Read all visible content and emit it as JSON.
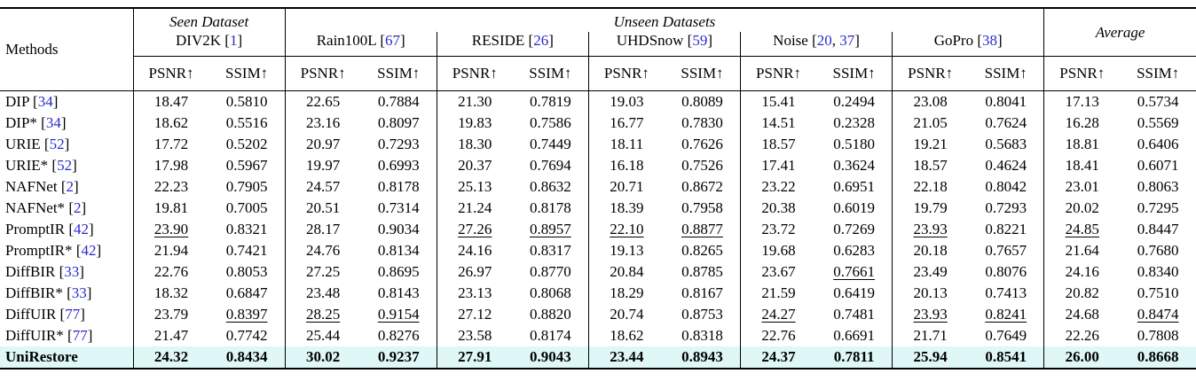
{
  "colors": {
    "cite_link": "#2a2ad0",
    "highlight_row_bg": "#dff7f7",
    "rule": "#000000"
  },
  "header": {
    "methods_label": "Methods",
    "group_labels": {
      "seen": "Seen Dataset",
      "unseen": "Unseen Datasets",
      "average": "Average"
    },
    "datasets": [
      {
        "name": "DIV2K",
        "cites": [
          "1"
        ]
      },
      {
        "name": "Rain100L",
        "cites": [
          "67"
        ]
      },
      {
        "name": "RESIDE",
        "cites": [
          "26"
        ]
      },
      {
        "name": "UHDSnow",
        "cites": [
          "59"
        ]
      },
      {
        "name": "Noise",
        "cites": [
          "20",
          "37"
        ]
      },
      {
        "name": "GoPro",
        "cites": [
          "38"
        ]
      }
    ],
    "metrics": [
      "PSNR↑",
      "SSIM↑"
    ]
  },
  "rows": [
    {
      "method": "DIP",
      "cites": [
        "34"
      ],
      "bold": false,
      "highlight": false,
      "underline": [],
      "values": [
        "18.47",
        "0.5810",
        "22.65",
        "0.7884",
        "21.30",
        "0.7819",
        "19.03",
        "0.8089",
        "15.41",
        "0.2494",
        "23.08",
        "0.8041",
        "17.13",
        "0.5734"
      ]
    },
    {
      "method": "DIP*",
      "cites": [
        "34"
      ],
      "bold": false,
      "highlight": false,
      "underline": [],
      "values": [
        "18.62",
        "0.5516",
        "23.16",
        "0.8097",
        "19.83",
        "0.7586",
        "16.77",
        "0.7830",
        "14.51",
        "0.2328",
        "21.05",
        "0.7624",
        "16.28",
        "0.5569"
      ]
    },
    {
      "method": "URIE",
      "cites": [
        "52"
      ],
      "bold": false,
      "highlight": false,
      "underline": [],
      "values": [
        "17.72",
        "0.5202",
        "20.97",
        "0.7293",
        "18.30",
        "0.7449",
        "18.11",
        "0.7626",
        "18.57",
        "0.5180",
        "19.21",
        "0.5683",
        "18.81",
        "0.6406"
      ]
    },
    {
      "method": "URIE*",
      "cites": [
        "52"
      ],
      "bold": false,
      "highlight": false,
      "underline": [],
      "values": [
        "17.98",
        "0.5967",
        "19.97",
        "0.6993",
        "20.37",
        "0.7694",
        "16.18",
        "0.7526",
        "17.41",
        "0.3624",
        "18.57",
        "0.4624",
        "18.41",
        "0.6071"
      ]
    },
    {
      "method": "NAFNet",
      "cites": [
        "2"
      ],
      "bold": false,
      "highlight": false,
      "underline": [],
      "values": [
        "22.23",
        "0.7905",
        "24.57",
        "0.8178",
        "25.13",
        "0.8632",
        "20.71",
        "0.8672",
        "23.22",
        "0.6951",
        "22.18",
        "0.8042",
        "23.01",
        "0.8063"
      ]
    },
    {
      "method": "NAFNet*",
      "cites": [
        "2"
      ],
      "bold": false,
      "highlight": false,
      "underline": [],
      "values": [
        "19.81",
        "0.7005",
        "20.51",
        "0.7314",
        "21.24",
        "0.8178",
        "18.39",
        "0.7958",
        "20.38",
        "0.6019",
        "19.79",
        "0.7293",
        "20.02",
        "0.7295"
      ]
    },
    {
      "method": "PromptIR",
      "cites": [
        "42"
      ],
      "bold": false,
      "highlight": false,
      "underline": [
        0,
        4,
        5,
        6,
        7,
        10,
        12
      ],
      "values": [
        "23.90",
        "0.8321",
        "28.17",
        "0.9034",
        "27.26",
        "0.8957",
        "22.10",
        "0.8877",
        "23.72",
        "0.7269",
        "23.93",
        "0.8221",
        "24.85",
        "0.8447"
      ]
    },
    {
      "method": "PromptIR*",
      "cites": [
        "42"
      ],
      "bold": false,
      "highlight": false,
      "underline": [],
      "values": [
        "21.94",
        "0.7421",
        "24.76",
        "0.8134",
        "24.16",
        "0.8317",
        "19.13",
        "0.8265",
        "19.68",
        "0.6283",
        "20.18",
        "0.7657",
        "21.64",
        "0.7680"
      ]
    },
    {
      "method": "DiffBIR",
      "cites": [
        "33"
      ],
      "bold": false,
      "highlight": false,
      "underline": [
        9
      ],
      "values": [
        "22.76",
        "0.8053",
        "27.25",
        "0.8695",
        "26.97",
        "0.8770",
        "20.84",
        "0.8785",
        "23.67",
        "0.7661",
        "23.49",
        "0.8076",
        "24.16",
        "0.8340"
      ]
    },
    {
      "method": "DiffBIR*",
      "cites": [
        "33"
      ],
      "bold": false,
      "highlight": false,
      "underline": [],
      "values": [
        "18.32",
        "0.6847",
        "23.48",
        "0.8143",
        "23.13",
        "0.8068",
        "18.29",
        "0.8167",
        "21.59",
        "0.6419",
        "20.13",
        "0.7413",
        "20.82",
        "0.7510"
      ]
    },
    {
      "method": "DiffUIR",
      "cites": [
        "77"
      ],
      "bold": false,
      "highlight": false,
      "underline": [
        1,
        2,
        3,
        8,
        10,
        11,
        13
      ],
      "values": [
        "23.79",
        "0.8397",
        "28.25",
        "0.9154",
        "27.12",
        "0.8820",
        "20.74",
        "0.8753",
        "24.27",
        "0.7481",
        "23.93",
        "0.8241",
        "24.68",
        "0.8474"
      ]
    },
    {
      "method": "DiffUIR*",
      "cites": [
        "77"
      ],
      "bold": false,
      "highlight": false,
      "underline": [],
      "values": [
        "21.47",
        "0.7742",
        "25.44",
        "0.8276",
        "23.58",
        "0.8174",
        "18.62",
        "0.8318",
        "22.76",
        "0.6691",
        "21.71",
        "0.7649",
        "22.26",
        "0.7808"
      ]
    },
    {
      "method": "UniRestore",
      "cites": [],
      "bold": true,
      "highlight": true,
      "underline": [],
      "values": [
        "24.32",
        "0.8434",
        "30.02",
        "0.9237",
        "27.91",
        "0.9043",
        "23.44",
        "0.8943",
        "24.37",
        "0.7811",
        "25.94",
        "0.8541",
        "26.00",
        "0.8668"
      ]
    }
  ]
}
